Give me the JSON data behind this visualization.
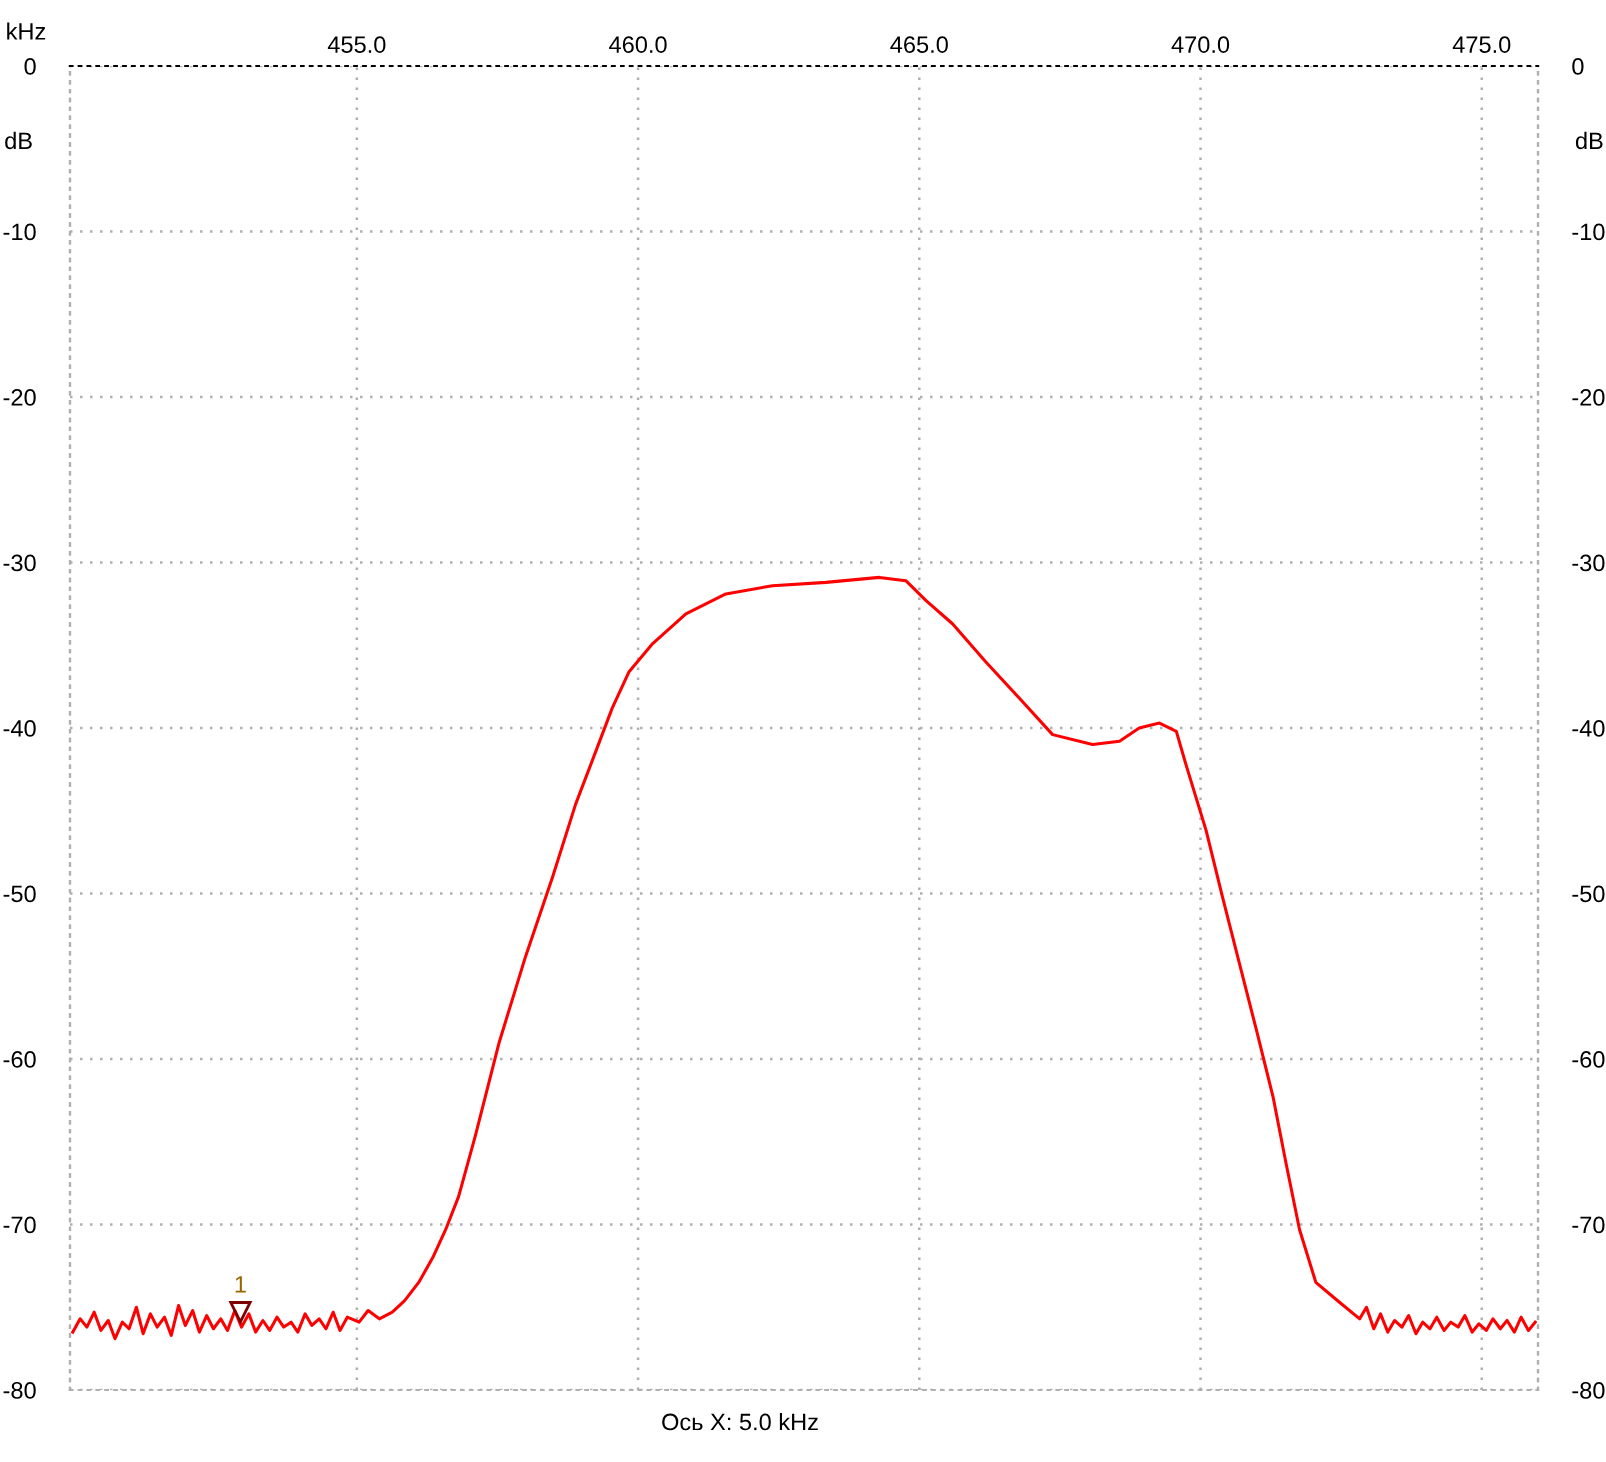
{
  "chart_data": {
    "type": "line",
    "xlabel": "kHz",
    "ylabel": "dB",
    "y2label": "dB",
    "xlim": [
      449.9,
      476.0
    ],
    "xticks": [
      {
        "value": 455,
        "label": "455.0"
      },
      {
        "value": 460,
        "label": "460.0"
      },
      {
        "value": 465,
        "label": "465.0"
      },
      {
        "value": 470,
        "label": "470.0"
      },
      {
        "value": 475,
        "label": "475.0"
      }
    ],
    "ylim": [
      -80,
      0
    ],
    "yticks": [
      0,
      -10,
      -20,
      -30,
      -40,
      -50,
      -60,
      -70,
      -80
    ],
    "y2lim": [
      -80,
      0
    ],
    "y2ticks": [
      0,
      -10,
      -20,
      -30,
      -40,
      -50,
      -60,
      -70,
      -80
    ],
    "grid": true,
    "legend": false,
    "marker": "none",
    "line_style": "solid",
    "series": [
      {
        "color": "#ff0000",
        "x": [
          449.95,
          450.08,
          450.2,
          450.33,
          450.45,
          450.58,
          450.7,
          450.83,
          450.95,
          451.08,
          451.2,
          451.33,
          451.45,
          451.58,
          451.7,
          451.83,
          451.95,
          452.08,
          452.2,
          452.33,
          452.45,
          452.58,
          452.7,
          452.83,
          452.95,
          453.08,
          453.2,
          453.33,
          453.45,
          453.58,
          453.7,
          453.83,
          453.95,
          454.08,
          454.2,
          454.33,
          454.45,
          454.58,
          454.7,
          454.83,
          455.04,
          455.2,
          455.4,
          455.63,
          455.85,
          456.1,
          456.35,
          456.58,
          456.81,
          457.11,
          457.53,
          458.0,
          458.48,
          458.89,
          459.25,
          459.54,
          459.84,
          460.26,
          460.85,
          461.56,
          462.39,
          463.34,
          464.29,
          464.76,
          465.12,
          465.59,
          466.18,
          466.78,
          467.37,
          468.08,
          468.56,
          468.91,
          469.27,
          469.57,
          469.74,
          470.1,
          470.39,
          470.69,
          470.99,
          471.29,
          471.52,
          471.76,
          472.05,
          472.47,
          472.83,
          472.95,
          473.08,
          473.2,
          473.33,
          473.45,
          473.58,
          473.7,
          473.83,
          473.95,
          474.08,
          474.2,
          474.33,
          474.45,
          474.58,
          474.7,
          474.83,
          474.95,
          475.08,
          475.2,
          475.33,
          475.45,
          475.58,
          475.7,
          475.83,
          475.95
        ],
        "values": [
          -76.5,
          -75.7,
          -76.2,
          -75.3,
          -76.4,
          -75.8,
          -76.9,
          -75.9,
          -76.3,
          -75.0,
          -76.6,
          -75.4,
          -76.2,
          -75.6,
          -76.7,
          -74.9,
          -76.1,
          -75.2,
          -76.5,
          -75.5,
          -76.3,
          -75.7,
          -76.4,
          -75.2,
          -76.2,
          -75.4,
          -76.5,
          -75.8,
          -76.4,
          -75.6,
          -76.2,
          -75.9,
          -76.5,
          -75.4,
          -76.1,
          -75.7,
          -76.3,
          -75.3,
          -76.4,
          -75.6,
          -75.9,
          -75.2,
          -75.7,
          -75.3,
          -74.6,
          -73.5,
          -72.0,
          -70.3,
          -68.3,
          -64.6,
          -59.0,
          -53.8,
          -49.0,
          -44.6,
          -41.4,
          -38.8,
          -36.6,
          -34.9,
          -33.1,
          -31.9,
          -31.4,
          -31.2,
          -30.9,
          -31.1,
          -32.3,
          -33.7,
          -36.0,
          -38.2,
          -40.4,
          -41.0,
          -40.8,
          -40.0,
          -39.7,
          -40.2,
          -42.2,
          -46.2,
          -50.2,
          -54.2,
          -58.2,
          -62.3,
          -66.3,
          -70.3,
          -73.5,
          -74.7,
          -75.7,
          -75.0,
          -76.3,
          -75.4,
          -76.5,
          -75.8,
          -76.2,
          -75.5,
          -76.6,
          -75.9,
          -76.3,
          -75.6,
          -76.4,
          -75.9,
          -76.2,
          -75.5,
          -76.5,
          -76.0,
          -76.4,
          -75.7,
          -76.3,
          -75.8,
          -76.5,
          -75.6,
          -76.4,
          -75.9
        ]
      }
    ],
    "annotations": [
      {
        "text": "1",
        "x": 452.93,
        "y": -75.3
      },
      "Ось X: 5.0 kHz"
    ]
  }
}
